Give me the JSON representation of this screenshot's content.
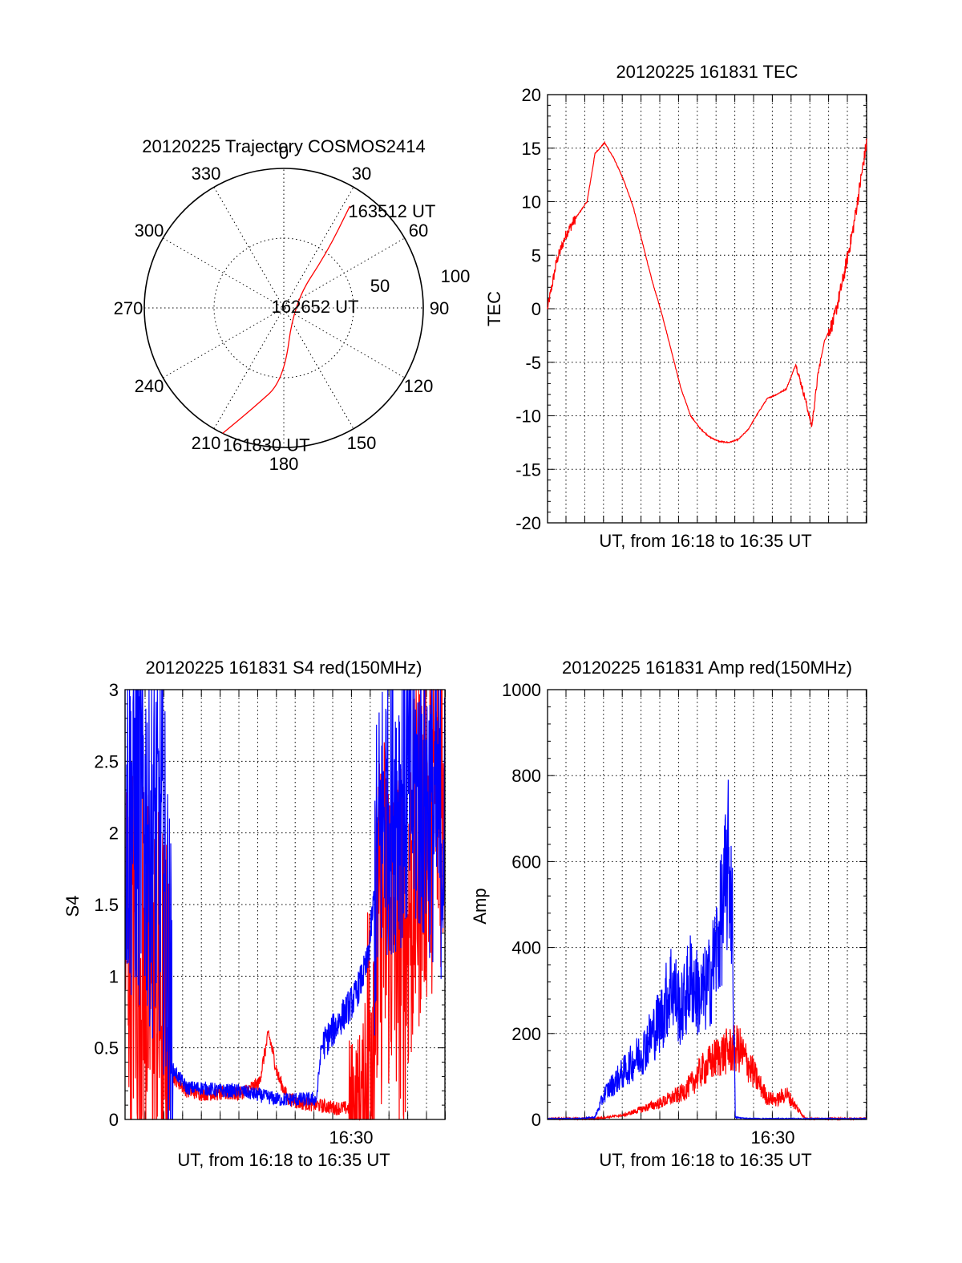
{
  "colors": {
    "red": "#ff0000",
    "blue": "#0000ff",
    "axis": "#000000",
    "background": "#ffffff"
  },
  "chart_data": [
    {
      "type": "polar",
      "title": "20120225 Trajectory COSMOS2414",
      "angle_ticks": [
        "0",
        "30",
        "60",
        "90",
        "120",
        "150",
        "180",
        "210",
        "240",
        "270",
        "300",
        "330"
      ],
      "radius_ticks": [
        "50",
        "100"
      ],
      "radius_range": [
        0,
        100
      ],
      "series": [
        {
          "color": "red",
          "points": [
            [
              206,
              100
            ],
            [
              197,
              75
            ],
            [
              180,
              52
            ],
            [
              65,
              8
            ],
            [
              38,
              50
            ],
            [
              33,
              87
            ]
          ]
        }
      ],
      "annotations": [
        {
          "text": "161830 UT",
          "point": [
            206,
            100
          ]
        },
        {
          "text": "162652 UT",
          "point": [
            65,
            8
          ]
        },
        {
          "text": "163512 UT",
          "point": [
            33,
            87
          ]
        }
      ]
    },
    {
      "type": "line",
      "title": "20120225 161831 TEC",
      "xlabel": "UT, from 16:18 to 16:35 UT",
      "ylabel": "TEC",
      "xlim": [
        "16:18:31",
        "16:35:12"
      ],
      "ylim": [
        -20,
        20
      ],
      "yticks": [
        "20",
        "15",
        "10",
        "5",
        "0",
        "-5",
        "-10",
        "-15",
        "-20"
      ],
      "series": [
        {
          "color": "red",
          "x": [
            "16:18:31",
            "16:19:00",
            "16:19:30",
            "16:20:00",
            "16:20:35",
            "16:21:00",
            "16:21:30",
            "16:22:00",
            "16:22:30",
            "16:23:00",
            "16:23:30",
            "16:24:00",
            "16:24:30",
            "16:25:00",
            "16:25:30",
            "16:26:00",
            "16:26:30",
            "16:27:00",
            "16:27:30",
            "16:28:00",
            "16:28:30",
            "16:29:00",
            "16:29:30",
            "16:30:00",
            "16:30:30",
            "16:31:00",
            "16:31:30",
            "16:32:00",
            "16:32:20",
            "16:32:40",
            "16:33:00",
            "16:33:30",
            "16:34:00",
            "16:34:30",
            "16:35:12"
          ],
          "y": [
            0,
            4.5,
            7,
            8.5,
            10,
            14.5,
            15.5,
            14,
            12,
            9.5,
            6,
            2.5,
            -0.5,
            -4,
            -7.5,
            -10,
            -11.2,
            -12,
            -12.4,
            -12.5,
            -12.2,
            -11.3,
            -9.8,
            -8.4,
            -8,
            -7.5,
            -5.2,
            -8.5,
            -11,
            -6,
            -3,
            -1,
            3,
            7.5,
            15.5
          ]
        }
      ]
    },
    {
      "type": "line",
      "title": "20120225 161831 S4 red(150MHz)",
      "xlabel": "UT, from 16:18 to 16:35 UT",
      "ylabel": "S4",
      "xlim": [
        "16:18:31",
        "16:35:12"
      ],
      "ylim": [
        0,
        3
      ],
      "yticks": [
        "3",
        "2.5",
        "2",
        "1.5",
        "1",
        "0.5",
        "0"
      ],
      "xticks": [
        "16:30"
      ],
      "series": [
        {
          "color": "blue",
          "x": [
            "16:18:31",
            "16:19:30",
            "16:20:30",
            "16:21:00",
            "16:21:45",
            "16:22:30",
            "16:23:30",
            "16:24:30",
            "16:25:30",
            "16:26:30",
            "16:27:30",
            "16:28:30",
            "16:28:45",
            "16:29:30",
            "16:30:30",
            "16:31:10",
            "16:32:00",
            "16:33:00",
            "16:34:00",
            "16:35:12"
          ],
          "y": [
            2.2,
            2.1,
            1.8,
            0.35,
            0.22,
            0.22,
            0.2,
            0.2,
            0.17,
            0.14,
            0.14,
            0.14,
            0.5,
            0.65,
            0.85,
            1.1,
            2.2,
            2.3,
            2.3,
            2.0
          ]
        },
        {
          "color": "red",
          "x": [
            "16:18:31",
            "16:19:30",
            "16:20:30",
            "16:21:00",
            "16:21:45",
            "16:22:30",
            "16:23:30",
            "16:24:30",
            "16:25:30",
            "16:26:00",
            "16:26:30",
            "16:27:00",
            "16:27:30",
            "16:28:30",
            "16:29:30",
            "16:30:30",
            "16:31:00",
            "16:31:30",
            "16:32:00",
            "16:33:00",
            "16:34:00",
            "16:35:12"
          ],
          "y": [
            1.4,
            1.0,
            0.8,
            0.3,
            0.2,
            0.18,
            0.18,
            0.18,
            0.25,
            0.6,
            0.3,
            0.15,
            0.12,
            0.1,
            0.08,
            0.08,
            0.2,
            0.9,
            1.5,
            1.2,
            2.0,
            2.4
          ]
        }
      ]
    },
    {
      "type": "line",
      "title": "20120225 161831 Amp red(150MHz)",
      "xlabel": "UT, from 16:18 to 16:35 UT",
      "ylabel": "Amp",
      "xlim": [
        "16:18:31",
        "16:35:12"
      ],
      "ylim": [
        0,
        1000
      ],
      "yticks": [
        "1000",
        "800",
        "600",
        "400",
        "200",
        "0"
      ],
      "xticks": [
        "16:30"
      ],
      "series": [
        {
          "color": "blue",
          "x": [
            "16:18:31",
            "16:20:00",
            "16:21:00",
            "16:21:30",
            "16:22:30",
            "16:23:30",
            "16:24:30",
            "16:25:00",
            "16:25:30",
            "16:26:00",
            "16:26:30",
            "16:27:00",
            "16:27:30",
            "16:28:00",
            "16:28:10",
            "16:28:20",
            "16:29:00",
            "16:30:00",
            "16:35:12"
          ],
          "y": [
            2,
            2,
            5,
            60,
            110,
            160,
            240,
            320,
            250,
            330,
            280,
            320,
            430,
            600,
            500,
            5,
            2,
            2,
            2
          ]
        },
        {
          "color": "red",
          "x": [
            "16:18:31",
            "16:21:00",
            "16:22:30",
            "16:23:30",
            "16:24:30",
            "16:25:30",
            "16:26:00",
            "16:26:30",
            "16:27:00",
            "16:27:30",
            "16:28:00",
            "16:28:30",
            "16:29:00",
            "16:29:30",
            "16:30:00",
            "16:30:30",
            "16:31:00",
            "16:31:30",
            "16:32:00",
            "16:35:12"
          ],
          "y": [
            2,
            2,
            10,
            25,
            40,
            60,
            80,
            110,
            130,
            150,
            160,
            165,
            130,
            90,
            50,
            45,
            60,
            30,
            2,
            2
          ]
        }
      ]
    }
  ]
}
